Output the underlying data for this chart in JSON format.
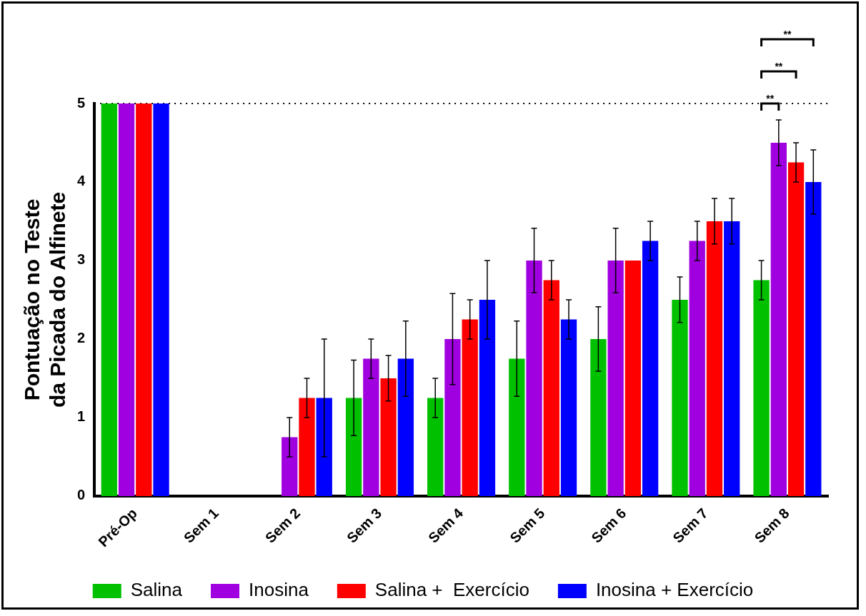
{
  "chart_data": {
    "type": "bar",
    "ylabel": "Pontuação no Teste\nda Picada do Alfinete",
    "categories": [
      "Pré-Op",
      "Sem 1",
      "Sem 2",
      "Sem 3",
      "Sem 4",
      "Sem 5",
      "Sem 6",
      "Sem 7",
      "Sem 8"
    ],
    "series": [
      {
        "name": "Salina",
        "color": "#00c000",
        "values": [
          5,
          0,
          0,
          1.25,
          1.25,
          1.75,
          2,
          2.5,
          2.75
        ],
        "errors": [
          null,
          null,
          null,
          0.48,
          0.25,
          0.48,
          0.41,
          0.29,
          0.25
        ]
      },
      {
        "name": "Inosina",
        "color": "#a000e0",
        "values": [
          5,
          0,
          0.75,
          1.75,
          2,
          3,
          3,
          3.25,
          4.5
        ],
        "errors": [
          null,
          null,
          0.25,
          0.25,
          0.58,
          0.41,
          0.41,
          0.25,
          0.29
        ]
      },
      {
        "name": "Salina +  Exercício",
        "color": "#ff0000",
        "values": [
          5,
          0,
          1.25,
          1.5,
          2.25,
          2.75,
          3,
          3.5,
          4.25
        ],
        "errors": [
          null,
          null,
          0.25,
          0.29,
          0.25,
          0.25,
          null,
          0.29,
          0.25
        ]
      },
      {
        "name": "Inosina + Exercício",
        "color": "#0000ff",
        "values": [
          5,
          0,
          1.25,
          1.75,
          2.5,
          2.25,
          3.25,
          3.5,
          4
        ],
        "errors": [
          null,
          null,
          0.75,
          0.48,
          0.5,
          0.25,
          0.25,
          0.29,
          0.41
        ]
      }
    ],
    "ylim": [
      0,
      5
    ],
    "yticks": [
      0,
      1,
      2,
      3,
      4,
      5
    ],
    "grid": false,
    "legend": "bottom",
    "ref_lines": [
      {
        "axis": "y",
        "value": 5,
        "line_style": "dotted",
        "color": "#000000"
      }
    ],
    "annotations": [
      "**",
      "**",
      "**"
    ]
  }
}
